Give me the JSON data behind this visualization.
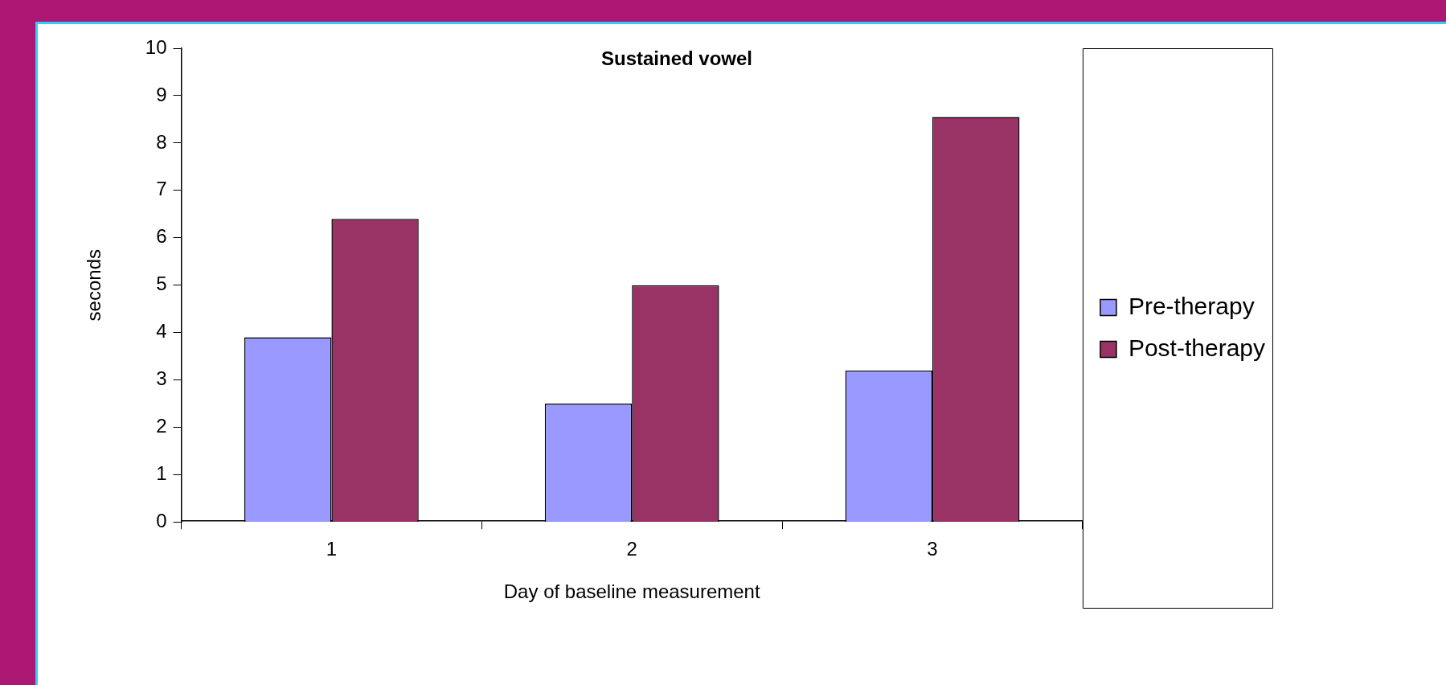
{
  "chart_data": {
    "type": "bar",
    "title": "Sustained vowel",
    "xlabel": "Day of baseline measurement",
    "ylabel": "seconds",
    "categories": [
      "1",
      "2",
      "3"
    ],
    "series": [
      {
        "name": "Pre-therapy",
        "color": "#9999ff",
        "values": [
          3.9,
          2.5,
          3.2
        ]
      },
      {
        "name": "Post-therapy",
        "color": "#993366",
        "values": [
          6.4,
          5.0,
          8.55
        ]
      }
    ],
    "ylim": [
      0,
      10
    ],
    "yticks": [
      0,
      1,
      2,
      3,
      4,
      5,
      6,
      7,
      8,
      9,
      10
    ],
    "legend": "right"
  }
}
